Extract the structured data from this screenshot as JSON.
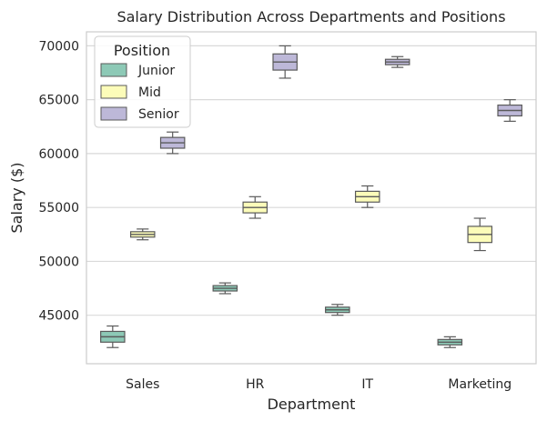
{
  "chart_data": {
    "type": "boxplot",
    "title": "Salary Distribution Across Departments and Positions",
    "xlabel": "Department",
    "ylabel": "Salary ($)",
    "categories": [
      "Sales",
      "HR",
      "IT",
      "Marketing"
    ],
    "ylim": [
      40500,
      71300
    ],
    "yticks": [
      45000,
      50000,
      55000,
      60000,
      65000,
      70000
    ],
    "grid": "horizontal",
    "legend": {
      "title": "Position",
      "placement": "top-left"
    },
    "series": [
      {
        "name": "Junior",
        "color": "#8dc9b6",
        "boxes": [
          {
            "min": 42000,
            "q1": 42500,
            "median": 43000,
            "q3": 43500,
            "max": 44000
          },
          {
            "min": 47000,
            "q1": 47250,
            "median": 47500,
            "q3": 47750,
            "max": 48000
          },
          {
            "min": 45000,
            "q1": 45250,
            "median": 45500,
            "q3": 45750,
            "max": 46000
          },
          {
            "min": 42000,
            "q1": 42250,
            "median": 42500,
            "q3": 42750,
            "max": 43000
          }
        ]
      },
      {
        "name": "Mid",
        "color": "#fcfcb9",
        "boxes": [
          {
            "min": 52000,
            "q1": 52250,
            "median": 52500,
            "q3": 52750,
            "max": 53000
          },
          {
            "min": 54000,
            "q1": 54500,
            "median": 55000,
            "q3": 55500,
            "max": 56000
          },
          {
            "min": 55000,
            "q1": 55500,
            "median": 56000,
            "q3": 56500,
            "max": 57000
          },
          {
            "min": 51000,
            "q1": 51750,
            "median": 52500,
            "q3": 53250,
            "max": 54000
          }
        ]
      },
      {
        "name": "Senior",
        "color": "#bdb8d8",
        "boxes": [
          {
            "min": 60000,
            "q1": 60500,
            "median": 61000,
            "q3": 61500,
            "max": 62000
          },
          {
            "min": 67000,
            "q1": 67750,
            "median": 68500,
            "q3": 69250,
            "max": 70000
          },
          {
            "min": 68000,
            "q1": 68250,
            "median": 68500,
            "q3": 68750,
            "max": 69000
          },
          {
            "min": 63000,
            "q1": 63500,
            "median": 64000,
            "q3": 64500,
            "max": 65000
          }
        ]
      }
    ]
  }
}
